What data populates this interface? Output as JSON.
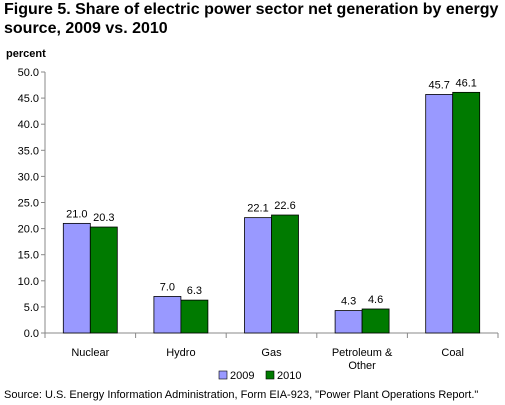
{
  "chart_data": {
    "type": "bar",
    "title": "Figure 5. Share of electric power sector net generation by energy source, 2009 vs. 2010",
    "ylabel": "percent",
    "xlabel": "",
    "categories": [
      "Nuclear",
      "Hydro",
      "Gas",
      "Petroleum & Other",
      "Coal"
    ],
    "series": [
      {
        "name": "2009",
        "color": "#9999ff",
        "values": [
          21.0,
          7.0,
          22.1,
          4.3,
          45.7
        ]
      },
      {
        "name": "2010",
        "color": "#007a00",
        "values": [
          20.3,
          6.3,
          22.6,
          4.6,
          46.1
        ]
      }
    ],
    "ylim": [
      0,
      50
    ],
    "yticks": [
      "0.0",
      "5.0",
      "10.0",
      "15.0",
      "20.0",
      "25.0",
      "30.0",
      "35.0",
      "40.0",
      "45.0",
      "50.0"
    ],
    "grid": false,
    "legend": "bottom",
    "source": "Source: U.S. Energy Information Administration, Form EIA-923, \"Power Plant Operations Report.\""
  }
}
